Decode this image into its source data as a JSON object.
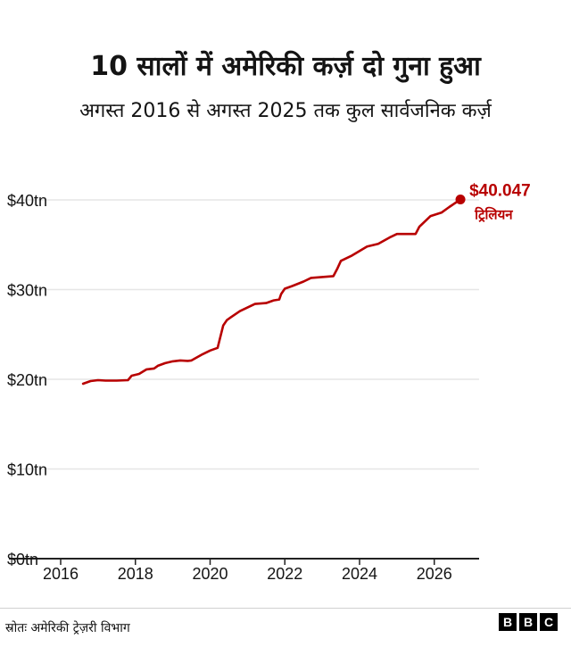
{
  "header": {
    "title": "10 सालों में अमेरिकी कर्ज़ दो गुना हुआ",
    "subtitle": "अगस्त 2016 से अगस्त 2025 तक कुल सार्वजनिक कर्ज़"
  },
  "footer": {
    "source": "स्रोतः अमेरिकी ट्रेज़री विभाग",
    "logo_letters": [
      "B",
      "B",
      "C"
    ]
  },
  "colors": {
    "series": "#b80000",
    "annotation": "#b80000",
    "grid": "#e6e6e6",
    "axis": "#222222",
    "text": "#141414"
  },
  "chart_data": {
    "type": "line",
    "title": "10 सालों में अमेरिकी कर्ज़ दो गुना हुआ",
    "subtitle": "अगस्त 2016 से अगस्त 2025 तक कुल सार्वजनिक कर्ज़",
    "xlabel": "",
    "ylabel": "",
    "xlim": [
      2016,
      2027.2
    ],
    "ylim": [
      0,
      40
    ],
    "x_ticks": [
      2016,
      2018,
      2020,
      2022,
      2024,
      2026
    ],
    "y_ticks": [
      0,
      10,
      20,
      30,
      40
    ],
    "y_tick_labels": [
      "$0tn",
      "$10tn",
      "$20tn",
      "$30tn",
      "$40tn"
    ],
    "grid": "horizontal",
    "series": [
      {
        "x": [
          2016.6,
          2016.8,
          2017.0,
          2017.2,
          2017.5,
          2017.8,
          2017.9,
          2018.1,
          2018.3,
          2018.5,
          2018.6,
          2018.8,
          2019.0,
          2019.2,
          2019.4,
          2019.5,
          2019.8,
          2020.0,
          2020.2,
          2020.35,
          2020.45,
          2020.55,
          2020.8,
          2021.0,
          2021.2,
          2021.5,
          2021.7,
          2021.85,
          2021.9,
          2022.0,
          2022.2,
          2022.5,
          2022.7,
          2023.0,
          2023.3,
          2023.4,
          2023.5,
          2023.8,
          2024.0,
          2024.2,
          2024.5,
          2024.8,
          2025.0,
          2025.3,
          2025.5,
          2025.6,
          2025.9,
          2026.2,
          2026.4,
          2026.7
        ],
        "values": [
          19.5,
          19.8,
          19.9,
          19.85,
          19.85,
          19.9,
          20.4,
          20.6,
          21.1,
          21.2,
          21.5,
          21.8,
          22.0,
          22.1,
          22.05,
          22.1,
          22.8,
          23.2,
          23.5,
          26.0,
          26.6,
          26.9,
          27.6,
          28.0,
          28.4,
          28.5,
          28.8,
          28.9,
          29.5,
          30.1,
          30.4,
          30.9,
          31.3,
          31.4,
          31.5,
          32.3,
          33.2,
          33.8,
          34.3,
          34.8,
          35.1,
          35.8,
          36.2,
          36.2,
          36.2,
          37.0,
          38.2,
          38.6,
          39.2,
          40.047
        ]
      }
    ],
    "annotation": {
      "x": 2026.7,
      "value": 40.047,
      "value_label": "$40.047",
      "unit_label": "ट्रिलियन"
    }
  }
}
